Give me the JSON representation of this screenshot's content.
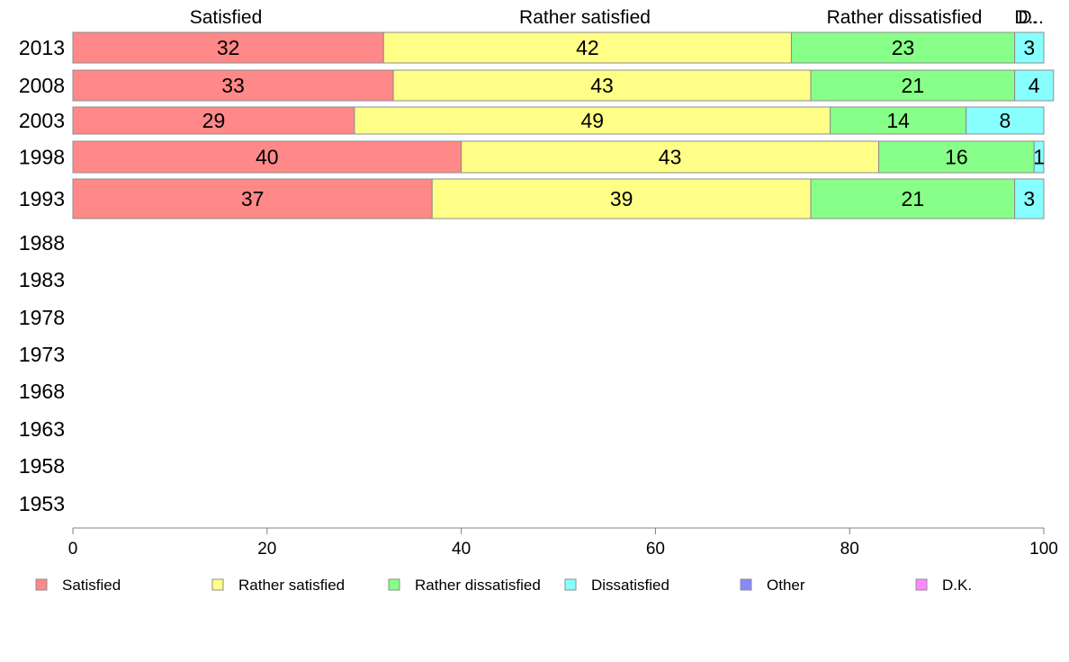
{
  "chart_data": {
    "type": "bar",
    "orientation": "horizontal",
    "stacked": true,
    "categories": [
      "2013",
      "2008",
      "2003",
      "1998",
      "1993",
      "1988",
      "1983",
      "1978",
      "1973",
      "1968",
      "1963",
      "1958",
      "1953"
    ],
    "series": [
      {
        "name": "Satisfied",
        "color": "#ff8888",
        "values": [
          32,
          33,
          29,
          40,
          37,
          null,
          null,
          null,
          null,
          null,
          null,
          null,
          null
        ],
        "labels": [
          "32",
          "33",
          "29",
          "40",
          "37"
        ]
      },
      {
        "name": "Rather satisfied",
        "color": "#ffff88",
        "values": [
          42,
          43,
          49,
          43,
          39,
          null,
          null,
          null,
          null,
          null,
          null,
          null,
          null
        ],
        "labels": [
          "42",
          "43",
          "49",
          "43",
          "39"
        ]
      },
      {
        "name": "Rather dissatisfied",
        "color": "#88ff88",
        "values": [
          23,
          21,
          14,
          16,
          21,
          null,
          null,
          null,
          null,
          null,
          null,
          null,
          null
        ],
        "labels": [
          "23",
          "21",
          "14",
          "16",
          "21"
        ]
      },
      {
        "name": "Dissatisfied",
        "color": "#88ffff",
        "values": [
          3,
          4,
          8,
          1,
          3,
          null,
          null,
          null,
          null,
          null,
          null,
          null,
          null
        ],
        "labels": [
          "3",
          "4",
          "8",
          "1",
          "3"
        ]
      },
      {
        "name": "Other",
        "color": "#8888ff",
        "values": [
          0,
          0,
          0,
          0,
          0,
          null,
          null,
          null,
          null,
          null,
          null,
          null,
          null
        ],
        "labels": []
      },
      {
        "name": "D.K.",
        "color": "#ff88ff",
        "values": [
          0,
          0,
          0,
          0,
          0,
          null,
          null,
          null,
          null,
          null,
          null,
          null,
          null
        ],
        "labels": []
      }
    ],
    "top_labels": [
      "Satisfied",
      "Rather satisfied",
      "Rather dissatisfied",
      "D.",
      "D..."
    ],
    "xlim": [
      0,
      100
    ],
    "xticks": [
      "0",
      "20",
      "40",
      "60",
      "80",
      "100"
    ],
    "grid": false,
    "legend_position": "bottom"
  }
}
